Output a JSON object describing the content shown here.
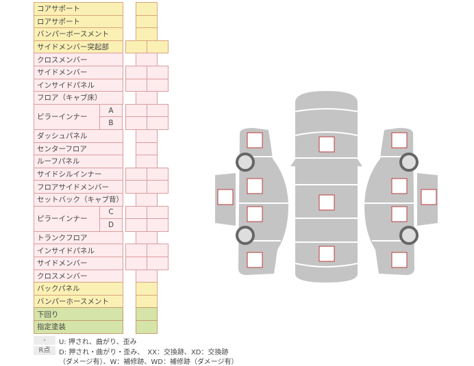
{
  "colors": {
    "yellow": {
      "fill": "#fbf0b4",
      "border": "#d7a57c"
    },
    "pink": {
      "fill": "#fdebee",
      "border": "#dc9c9c"
    },
    "green": {
      "fill": "#d5e4a8",
      "border": "#c69c6c"
    },
    "car_body": "#c4c4c4",
    "check_box_border": "#c0393b",
    "wheel_ring": "#666666",
    "wheel_fill": "#dedede"
  },
  "rows": [
    {
      "label": "コアサポート",
      "color": "yellow",
      "boxes": 1
    },
    {
      "label": "ロアサポート",
      "color": "yellow",
      "boxes": 1
    },
    {
      "label": "バンパーボースメント",
      "color": "yellow",
      "boxes": 1
    },
    {
      "label": "サイドメンバー突起部",
      "color": "yellow",
      "boxes": 2
    },
    {
      "label": "クロスメンバー",
      "color": "pink",
      "boxes": 1
    },
    {
      "label": "サイドメンバー",
      "color": "pink",
      "boxes": 2
    },
    {
      "label": "インサイドパネル",
      "color": "pink",
      "boxes": 2
    },
    {
      "label": "フロア（キャブ床）",
      "color": "pink",
      "boxes": 1
    },
    {
      "label": "ピラーインナー",
      "color": "pink",
      "boxes": 2,
      "subs": [
        "A",
        "B"
      ]
    },
    {
      "label": "ダッシュパネル",
      "color": "pink",
      "boxes": 1
    },
    {
      "label": "センターフロア",
      "color": "pink",
      "boxes": 1
    },
    {
      "label": "ルーフパネル",
      "color": "pink",
      "boxes": 1
    },
    {
      "label": "サイドシルインナー",
      "color": "pink",
      "boxes": 2
    },
    {
      "label": "フロアサイドメンバー",
      "color": "pink",
      "boxes": 2
    },
    {
      "label": "セットバック（キャブ背）",
      "color": "pink",
      "boxes": 1
    },
    {
      "label": "ピラーインナー",
      "color": "pink",
      "boxes": 2,
      "subs": [
        "C",
        "D"
      ]
    },
    {
      "label": "トランクフロア",
      "color": "pink",
      "boxes": 1
    },
    {
      "label": "インサイドパネル",
      "color": "pink",
      "boxes": 2
    },
    {
      "label": "サイドメンバー",
      "color": "pink",
      "boxes": 2
    },
    {
      "label": "クロスメンバー",
      "color": "pink",
      "boxes": 1
    },
    {
      "label": "バックパネル",
      "color": "yellow",
      "boxes": 1
    },
    {
      "label": "バンパーホースメント",
      "color": "yellow",
      "boxes": 1
    },
    {
      "label": "下回り",
      "color": "green",
      "boxes": 1
    },
    {
      "label": "指定塗装",
      "color": "green",
      "boxes": 1
    }
  ],
  "legend": [
    {
      "key": "-",
      "text": "U: 押され、曲がり、歪み"
    },
    {
      "key": "R点",
      "text": "D: 押され・曲がり・歪み、　XX：交換跡、XD：交換跡",
      "text2": "（ダメージ有）、W：補修跡、WD：補修跡（ダメージ有）"
    }
  ]
}
